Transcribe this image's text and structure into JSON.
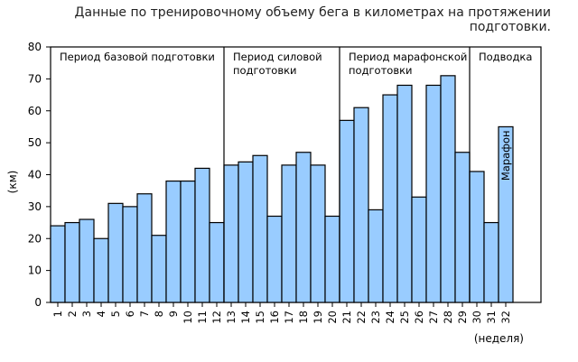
{
  "chart_data": {
    "type": "bar",
    "title": "Данные по тренировочному объему бега в километрах на протяжении подготовки.",
    "ylabel": "(км)",
    "xlabel": "(неделя)",
    "ylim": [
      0,
      80
    ],
    "yticks": [
      0,
      10,
      20,
      30,
      40,
      50,
      60,
      70,
      80
    ],
    "bar_color": "#99ccff",
    "categories": [
      "1",
      "2",
      "3",
      "4",
      "5",
      "6",
      "7",
      "8",
      "9",
      "10",
      "11",
      "12",
      "13",
      "14",
      "15",
      "16",
      "17",
      "18",
      "19",
      "20",
      "21",
      "22",
      "23",
      "24",
      "25",
      "26",
      "27",
      "28",
      "29",
      "30",
      "31",
      "32"
    ],
    "values": [
      24,
      25,
      26,
      20,
      31,
      30,
      34,
      21,
      38,
      38,
      42,
      25,
      43,
      44,
      46,
      27,
      43,
      47,
      43,
      27,
      57,
      61,
      29,
      65,
      68,
      33,
      68,
      71,
      47,
      41,
      25,
      55
    ],
    "periods": [
      {
        "label_lines": [
          "Период базовой подготовки"
        ],
        "start_week": 1,
        "end_week": 12
      },
      {
        "label_lines": [
          "Период силовой",
          "подготовки"
        ],
        "start_week": 13,
        "end_week": 20
      },
      {
        "label_lines": [
          "Период марафонской",
          "подготовки"
        ],
        "start_week": 21,
        "end_week": 29
      },
      {
        "label_lines": [
          "Подводка"
        ],
        "start_week": 30,
        "end_week": 32
      }
    ],
    "annotations": [
      {
        "text": "Марафон",
        "week": 32
      }
    ]
  }
}
